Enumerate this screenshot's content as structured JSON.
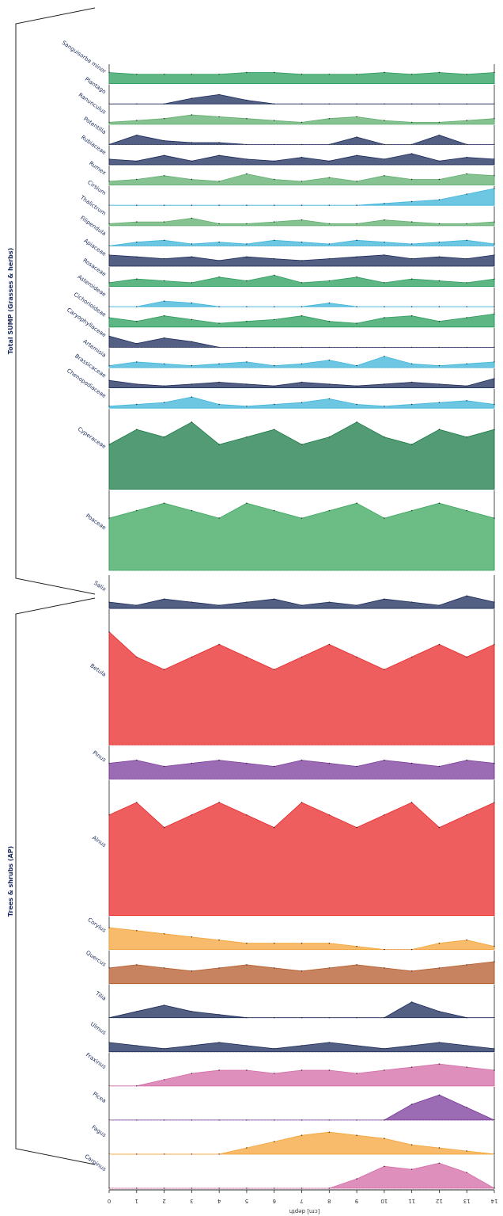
{
  "chart_data": {
    "type": "area",
    "orientation": "stratigraphic diagram, rotated; depth axis along bottom",
    "xlabel": "[cm] depth",
    "x_ticks": [
      "0",
      "1",
      "2",
      "3",
      "4",
      "5",
      "6",
      "7",
      "8",
      "9",
      "10",
      "11",
      "12",
      "13",
      "14"
    ],
    "grid": false,
    "groups": [
      {
        "name": "Total SUMP (Grasses & herbs)",
        "color": "#5fae6e"
      },
      {
        "name": "Trees & shrubs (AP)",
        "color": "#e8282a"
      }
    ],
    "series": [
      {
        "name": "Sanguisorba minor",
        "kind": "herb",
        "color": "#2a9d5c",
        "values": [
          0.6,
          0.5,
          0.5,
          0.5,
          0.5,
          0.6,
          0.6,
          0.5,
          0.5,
          0.5,
          0.6,
          0.5,
          0.6,
          0.5,
          0.6
        ]
      },
      {
        "name": "Plantago",
        "kind": "herb",
        "color": "#1a2a5a",
        "values": [
          0,
          0,
          0,
          0.3,
          0.5,
          0.2,
          0,
          0,
          0,
          0,
          0,
          0,
          0,
          0,
          0
        ]
      },
      {
        "name": "Ranunculus",
        "kind": "herb",
        "color": "#5fae6e",
        "values": [
          0.1,
          0.2,
          0.3,
          0.5,
          0.4,
          0.3,
          0.2,
          0.1,
          0.3,
          0.4,
          0.2,
          0.1,
          0.1,
          0.2,
          0.3
        ]
      },
      {
        "name": "Potentilla",
        "kind": "herb",
        "color": "#1a2a5a",
        "values": [
          0,
          0.5,
          0.2,
          0.1,
          0.1,
          0,
          0,
          0,
          0,
          0.4,
          0,
          0,
          0.5,
          0,
          0
        ]
      },
      {
        "name": "Rubiaceae",
        "kind": "herb",
        "color": "#1a2a5a",
        "values": [
          0.3,
          0.2,
          0.5,
          0.2,
          0.5,
          0.3,
          0.2,
          0.4,
          0.2,
          0.5,
          0.3,
          0.6,
          0.2,
          0.4,
          0.3
        ]
      },
      {
        "name": "Rumex",
        "kind": "herb",
        "color": "#5fae6e",
        "values": [
          0.2,
          0.3,
          0.5,
          0.3,
          0.2,
          0.6,
          0.3,
          0.2,
          0.4,
          0.2,
          0.5,
          0.3,
          0.3,
          0.6,
          0.5
        ]
      },
      {
        "name": "Cirsium",
        "kind": "herb",
        "color": "#3cb4d9",
        "values": [
          0,
          0,
          0,
          0,
          0,
          0,
          0,
          0,
          0,
          0,
          0.1,
          0.2,
          0.3,
          0.6,
          0.9
        ]
      },
      {
        "name": "Thalictrum",
        "kind": "herb",
        "color": "#5fae6e",
        "values": [
          0.1,
          0.2,
          0.2,
          0.4,
          0.1,
          0.1,
          0.2,
          0.3,
          0.1,
          0.1,
          0.3,
          0.2,
          0.1,
          0.1,
          0.2
        ]
      },
      {
        "name": "Filipendula",
        "kind": "herb",
        "color": "#3cb4d9",
        "values": [
          0,
          0.2,
          0.3,
          0.1,
          0.2,
          0.1,
          0.3,
          0.2,
          0.1,
          0.3,
          0.2,
          0.1,
          0.2,
          0.3,
          0.1
        ]
      },
      {
        "name": "Apiaceae",
        "kind": "herb",
        "color": "#1a2a5a",
        "values": [
          0.6,
          0.5,
          0.4,
          0.5,
          0.3,
          0.5,
          0.4,
          0.3,
          0.4,
          0.5,
          0.6,
          0.4,
          0.5,
          0.4,
          0.6
        ]
      },
      {
        "name": "Rosaceae",
        "kind": "herb",
        "color": "#2a9d5c",
        "values": [
          0.2,
          0.4,
          0.3,
          0.2,
          0.5,
          0.3,
          0.6,
          0.2,
          0.3,
          0.5,
          0.2,
          0.4,
          0.3,
          0.2,
          0.4
        ]
      },
      {
        "name": "Asteroideae",
        "kind": "herb",
        "color": "#3cb4d9",
        "values": [
          0,
          0,
          0.3,
          0.2,
          0,
          0,
          0,
          0,
          0.2,
          0,
          0,
          0,
          0,
          0,
          0
        ]
      },
      {
        "name": "Cichorioideae",
        "kind": "herb",
        "color": "#2a9d5c",
        "values": [
          0.5,
          0.3,
          0.6,
          0.4,
          0.2,
          0.3,
          0.4,
          0.6,
          0.3,
          0.2,
          0.5,
          0.6,
          0.3,
          0.5,
          0.7
        ]
      },
      {
        "name": "Caryophyllaceae",
        "kind": "herb",
        "color": "#1a2a5a",
        "values": [
          0.6,
          0.2,
          0.5,
          0.3,
          0,
          0,
          0,
          0,
          0,
          0,
          0,
          0,
          0,
          0,
          0
        ]
      },
      {
        "name": "Artemisia",
        "kind": "herb",
        "color": "#3cb4d9",
        "values": [
          0.1,
          0.3,
          0.2,
          0.1,
          0.2,
          0.3,
          0.1,
          0.2,
          0.4,
          0.1,
          0.6,
          0.2,
          0.1,
          0.2,
          0.3
        ]
      },
      {
        "name": "Brassicaceae",
        "kind": "herb",
        "color": "#1a2a5a",
        "values": [
          0.4,
          0.2,
          0.1,
          0.2,
          0.3,
          0.2,
          0.1,
          0.3,
          0.2,
          0.1,
          0.2,
          0.3,
          0.2,
          0.1,
          0.5
        ]
      },
      {
        "name": "Chenopodiaceae",
        "kind": "herb",
        "color": "#3cb4d9",
        "values": [
          0.1,
          0.2,
          0.3,
          0.6,
          0.2,
          0.1,
          0.2,
          0.3,
          0.5,
          0.2,
          0.1,
          0.2,
          0.3,
          0.4,
          0.2
        ]
      },
      {
        "name": "Cyperaceae",
        "kind": "herb",
        "color": "#1a7a45",
        "values": [
          0.6,
          0.8,
          0.7,
          0.9,
          0.6,
          0.7,
          0.8,
          0.6,
          0.7,
          0.9,
          0.7,
          0.6,
          0.8,
          0.7,
          0.8
        ]
      },
      {
        "name": "Poaceae",
        "kind": "herb",
        "color": "#3aa55c",
        "values": [
          0.7,
          0.8,
          0.9,
          0.8,
          0.7,
          0.9,
          0.8,
          0.7,
          0.8,
          0.9,
          0.7,
          0.8,
          0.9,
          0.8,
          0.7
        ]
      },
      {
        "name": "Salix",
        "kind": "tree",
        "color": "#1a2a5a",
        "values": [
          0.2,
          0.1,
          0.3,
          0.2,
          0.1,
          0.2,
          0.3,
          0.1,
          0.2,
          0.1,
          0.3,
          0.2,
          0.1,
          0.4,
          0.2
        ]
      },
      {
        "name": "Betula",
        "kind": "tree",
        "color": "#e8282a",
        "values": [
          0.9,
          0.7,
          0.6,
          0.7,
          0.8,
          0.7,
          0.6,
          0.7,
          0.8,
          0.7,
          0.6,
          0.7,
          0.8,
          0.7,
          0.8
        ]
      },
      {
        "name": "Pinus",
        "kind": "tree",
        "color": "#7a3a9a",
        "values": [
          0.5,
          0.6,
          0.4,
          0.5,
          0.6,
          0.5,
          0.4,
          0.6,
          0.5,
          0.4,
          0.6,
          0.5,
          0.4,
          0.6,
          0.5
        ]
      },
      {
        "name": "Alnus",
        "kind": "tree",
        "color": "#e8282a",
        "values": [
          0.8,
          0.9,
          0.7,
          0.8,
          0.9,
          0.8,
          0.7,
          0.9,
          0.8,
          0.7,
          0.8,
          0.9,
          0.7,
          0.8,
          0.9
        ]
      },
      {
        "name": "Corylus",
        "kind": "tree",
        "color": "#f4a43a",
        "values": [
          0.7,
          0.6,
          0.5,
          0.4,
          0.3,
          0.2,
          0.2,
          0.2,
          0.2,
          0.1,
          0,
          0,
          0.2,
          0.3,
          0.1
        ]
      },
      {
        "name": "Quercus",
        "kind": "tree",
        "color": "#b45a2a",
        "values": [
          0.5,
          0.6,
          0.5,
          0.4,
          0.5,
          0.6,
          0.5,
          0.4,
          0.5,
          0.6,
          0.5,
          0.4,
          0.5,
          0.6,
          0.7
        ]
      },
      {
        "name": "Tilia",
        "kind": "tree",
        "color": "#1a2a5a",
        "values": [
          0,
          0.2,
          0.4,
          0.2,
          0.1,
          0,
          0,
          0,
          0,
          0,
          0,
          0.5,
          0.2,
          0,
          0
        ]
      },
      {
        "name": "Ulmus",
        "kind": "tree",
        "color": "#1a2a5a",
        "values": [
          0.3,
          0.2,
          0.1,
          0.2,
          0.3,
          0.2,
          0.1,
          0.2,
          0.3,
          0.2,
          0.1,
          0.2,
          0.3,
          0.2,
          0.1
        ]
      },
      {
        "name": "Fraxinus",
        "kind": "tree",
        "color": "#d46aa6",
        "values": [
          0,
          0,
          0.2,
          0.4,
          0.5,
          0.5,
          0.4,
          0.5,
          0.5,
          0.4,
          0.5,
          0.6,
          0.7,
          0.6,
          0.5
        ]
      },
      {
        "name": "Picea",
        "kind": "tree",
        "color": "#7a3a9a",
        "values": [
          0,
          0,
          0,
          0,
          0,
          0,
          0,
          0,
          0,
          0,
          0,
          0.5,
          0.8,
          0.4,
          0
        ]
      },
      {
        "name": "Fagus",
        "kind": "tree",
        "color": "#f4a43a",
        "values": [
          0,
          0,
          0,
          0,
          0,
          0.2,
          0.4,
          0.6,
          0.7,
          0.6,
          0.5,
          0.3,
          0.2,
          0.1,
          0
        ]
      },
      {
        "name": "Carpinus",
        "kind": "tree",
        "color": "#d46aa6",
        "values": [
          0,
          0,
          0,
          0,
          0,
          0,
          0,
          0,
          0,
          0.3,
          0.7,
          0.6,
          0.8,
          0.5,
          0
        ]
      }
    ]
  }
}
